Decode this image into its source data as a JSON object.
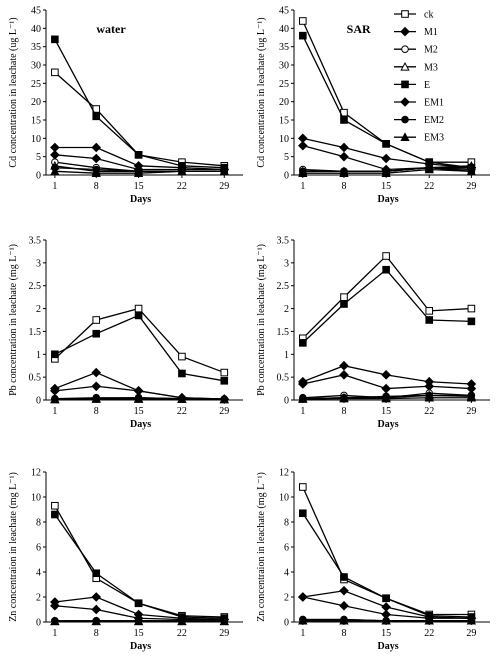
{
  "chart_data": [
    {
      "type": "line",
      "panel": "Cd-water",
      "title": "water",
      "xlabel": "Days",
      "ylabel": "Cd concentration in leachate (ug L⁻¹)",
      "x": [
        1,
        8,
        15,
        22,
        29
      ],
      "ylim": [
        0,
        45
      ],
      "yticks": [
        "0",
        "5",
        "10",
        "15",
        "20",
        "25",
        "30",
        "35",
        "40",
        "45"
      ],
      "series": [
        {
          "name": "ck",
          "values": [
            28,
            18,
            5.5,
            3.5,
            2.5
          ]
        },
        {
          "name": "M1",
          "values": [
            5.5,
            4.5,
            1.5,
            1.5,
            1.5
          ]
        },
        {
          "name": "M2",
          "values": [
            3.5,
            2.0,
            1.0,
            1.0,
            1.0
          ]
        },
        {
          "name": "M3",
          "values": [
            2.5,
            1.0,
            1.0,
            1.0,
            1.0
          ]
        },
        {
          "name": "E",
          "values": [
            37,
            16,
            5.5,
            2.5,
            2.0
          ]
        },
        {
          "name": "EM1",
          "values": [
            7.5,
            7.5,
            2.5,
            2.0,
            1.5
          ]
        },
        {
          "name": "EM2",
          "values": [
            2.0,
            1.5,
            1.0,
            1.0,
            1.0
          ]
        },
        {
          "name": "EM3",
          "values": [
            1.0,
            0.5,
            0.5,
            1.0,
            1.0
          ]
        }
      ]
    },
    {
      "type": "line",
      "panel": "Cd-SAR",
      "title": "SAR",
      "xlabel": "Days",
      "ylabel": "Cd concentration in leachate (ug L⁻¹)",
      "x": [
        1,
        8,
        15,
        22,
        29
      ],
      "ylim": [
        0,
        45
      ],
      "yticks": [
        "0",
        "5",
        "10",
        "15",
        "20",
        "25",
        "30",
        "35",
        "40",
        "45"
      ],
      "series": [
        {
          "name": "ck",
          "values": [
            42,
            17,
            8.5,
            3.5,
            3.5
          ]
        },
        {
          "name": "M1",
          "values": [
            8,
            5,
            1.5,
            2.0,
            2.0
          ]
        },
        {
          "name": "M2",
          "values": [
            1.5,
            1.0,
            1.0,
            2.0,
            1.5
          ]
        },
        {
          "name": "M3",
          "values": [
            1.0,
            1.0,
            1.0,
            2.0,
            2.5
          ]
        },
        {
          "name": "E",
          "values": [
            38,
            15,
            8.5,
            3.5,
            2.0
          ]
        },
        {
          "name": "EM1",
          "values": [
            10,
            7.5,
            4.5,
            3.0,
            2.0
          ]
        },
        {
          "name": "EM2",
          "values": [
            1.0,
            1.0,
            1.0,
            2.0,
            1.0
          ]
        },
        {
          "name": "EM3",
          "values": [
            0.5,
            0.5,
            0.5,
            1.5,
            1.0
          ]
        }
      ]
    },
    {
      "type": "line",
      "panel": "Pb-water",
      "title": "",
      "xlabel": "Days",
      "ylabel": "Pb concentration in leachate (mg L⁻¹)",
      "x": [
        1,
        8,
        15,
        22,
        29
      ],
      "ylim": [
        0,
        3.5
      ],
      "yticks": [
        "0",
        "0.5",
        "1",
        "1.5",
        "2",
        "2.5",
        "3",
        "3.5"
      ],
      "series": [
        {
          "name": "ck",
          "values": [
            0.9,
            1.75,
            2.0,
            0.95,
            0.6
          ]
        },
        {
          "name": "M1",
          "values": [
            0.2,
            0.3,
            0.2,
            0.05,
            0.02
          ]
        },
        {
          "name": "M2",
          "values": [
            0.03,
            0.05,
            0.05,
            0.03,
            0.02
          ]
        },
        {
          "name": "M3",
          "values": [
            0.02,
            0.03,
            0.03,
            0.02,
            0.02
          ]
        },
        {
          "name": "E",
          "values": [
            1.0,
            1.45,
            1.85,
            0.58,
            0.42
          ]
        },
        {
          "name": "EM1",
          "values": [
            0.25,
            0.6,
            0.2,
            0.05,
            0.02
          ]
        },
        {
          "name": "EM2",
          "values": [
            0.02,
            0.03,
            0.05,
            0.03,
            0.02
          ]
        },
        {
          "name": "EM3",
          "values": [
            0.01,
            0.02,
            0.02,
            0.02,
            0.01
          ]
        }
      ]
    },
    {
      "type": "line",
      "panel": "Pb-SAR",
      "title": "",
      "xlabel": "Days",
      "ylabel": "Pb concentration in leachate (mg L⁻¹)",
      "x": [
        1,
        8,
        15,
        22,
        29
      ],
      "ylim": [
        0,
        3.5
      ],
      "yticks": [
        "0",
        "0.5",
        "1",
        "1.5",
        "2",
        "2.5",
        "3",
        "3.5"
      ],
      "series": [
        {
          "name": "ck",
          "values": [
            1.35,
            2.25,
            3.15,
            1.95,
            2.0
          ]
        },
        {
          "name": "M1",
          "values": [
            0.35,
            0.55,
            0.25,
            0.3,
            0.25
          ]
        },
        {
          "name": "M2",
          "values": [
            0.05,
            0.1,
            0.05,
            0.15,
            0.1
          ]
        },
        {
          "name": "M3",
          "values": [
            0.03,
            0.05,
            0.05,
            0.1,
            0.08
          ]
        },
        {
          "name": "E",
          "values": [
            1.25,
            2.1,
            2.85,
            1.75,
            1.72
          ]
        },
        {
          "name": "EM1",
          "values": [
            0.4,
            0.75,
            0.55,
            0.4,
            0.35
          ]
        },
        {
          "name": "EM2",
          "values": [
            0.03,
            0.05,
            0.08,
            0.1,
            0.1
          ]
        },
        {
          "name": "EM3",
          "values": [
            0.02,
            0.03,
            0.03,
            0.05,
            0.05
          ]
        }
      ]
    },
    {
      "type": "line",
      "panel": "Zn-water",
      "title": "",
      "xlabel": "Days",
      "ylabel": "Zn concentraion in leachate (mg L⁻¹)",
      "x": [
        1,
        8,
        15,
        22,
        29
      ],
      "ylim": [
        0,
        12
      ],
      "yticks": [
        "0",
        "2",
        "4",
        "6",
        "8",
        "10",
        "12"
      ],
      "series": [
        {
          "name": "ck",
          "values": [
            9.3,
            3.5,
            1.5,
            0.5,
            0.4
          ]
        },
        {
          "name": "M1",
          "values": [
            1.3,
            1.0,
            0.3,
            0.2,
            0.2
          ]
        },
        {
          "name": "M2",
          "values": [
            0.1,
            0.1,
            0.1,
            0.1,
            0.1
          ]
        },
        {
          "name": "M3",
          "values": [
            0.05,
            0.05,
            0.05,
            0.05,
            0.05
          ]
        },
        {
          "name": "E",
          "values": [
            8.6,
            3.9,
            1.5,
            0.4,
            0.3
          ]
        },
        {
          "name": "EM1",
          "values": [
            1.6,
            2.0,
            0.6,
            0.3,
            0.2
          ]
        },
        {
          "name": "EM2",
          "values": [
            0.1,
            0.1,
            0.1,
            0.1,
            0.1
          ]
        },
        {
          "name": "EM3",
          "values": [
            0.05,
            0.05,
            0.05,
            0.05,
            0.05
          ]
        }
      ]
    },
    {
      "type": "line",
      "panel": "Zn-SAR",
      "title": "",
      "xlabel": "Days",
      "ylabel": "Zn concentraion in leachate (mg L⁻¹)",
      "x": [
        1,
        8,
        15,
        22,
        29
      ],
      "ylim": [
        0,
        12
      ],
      "yticks": [
        "0",
        "2",
        "4",
        "6",
        "8",
        "10",
        "12"
      ],
      "series": [
        {
          "name": "ck",
          "values": [
            10.8,
            3.4,
            1.9,
            0.6,
            0.6
          ]
        },
        {
          "name": "M1",
          "values": [
            2.0,
            1.3,
            0.6,
            0.3,
            0.3
          ]
        },
        {
          "name": "M2",
          "values": [
            0.2,
            0.2,
            0.1,
            0.1,
            0.1
          ]
        },
        {
          "name": "M3",
          "values": [
            0.1,
            0.1,
            0.1,
            0.1,
            0.1
          ]
        },
        {
          "name": "E",
          "values": [
            8.7,
            3.6,
            1.9,
            0.5,
            0.4
          ]
        },
        {
          "name": "EM1",
          "values": [
            2.0,
            2.5,
            1.2,
            0.4,
            0.3
          ]
        },
        {
          "name": "EM2",
          "values": [
            0.2,
            0.2,
            0.1,
            0.1,
            0.1
          ]
        },
        {
          "name": "EM3",
          "values": [
            0.1,
            0.1,
            0.1,
            0.1,
            0.1
          ]
        }
      ]
    }
  ],
  "legend": [
    "ck",
    "M1",
    "M2",
    "M3",
    "E",
    "EM1",
    "EM2",
    "EM3"
  ],
  "markers": {
    "ck": "open-square",
    "M1": "diamond",
    "M2": "open-circle",
    "M3": "open-triangle",
    "E": "filled-square",
    "EM1": "filled-diamond",
    "EM2": "filled-circle",
    "EM3": "filled-triangle"
  },
  "colors": {
    "line": "#000000",
    "background": "#ffffff"
  }
}
